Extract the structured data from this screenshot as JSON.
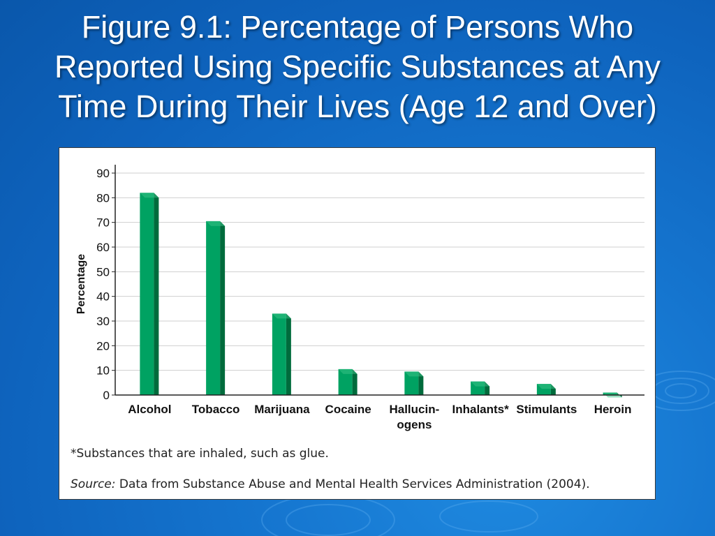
{
  "slide": {
    "title_lines": [
      "Figure 9.1: Percentage of Persons Who",
      "Reported Using Specific Substances at Any",
      "Time During Their Lives (Age 12 and Over)"
    ]
  },
  "colors": {
    "background": "#1168c4",
    "bar_front": "#00a262",
    "bar_side": "#006b3c",
    "bar_top": "#3cc487",
    "grid": "#cfcfcf"
  },
  "chart_data": {
    "type": "bar",
    "title": "",
    "xlabel": "",
    "ylabel": "Percentage",
    "ylim": [
      0,
      90
    ],
    "yticks": [
      0,
      10,
      20,
      30,
      40,
      50,
      60,
      70,
      80,
      90
    ],
    "categories": [
      "Alcohol",
      "Tobacco",
      "Marijuana",
      "Cocaine",
      "Hallucin-\nogens",
      "Inhalants*",
      "Stimulants",
      "Heroin"
    ],
    "values": [
      82,
      70.5,
      33,
      10.5,
      9.5,
      5.5,
      4.5,
      1
    ],
    "grid": true,
    "legend": "none"
  },
  "notes": {
    "footnote": "*Substances that are inhaled, such as glue.",
    "source_label": "Source:",
    "source_text": " Data from Substance Abuse and Mental Health Services Administration (2004)."
  }
}
